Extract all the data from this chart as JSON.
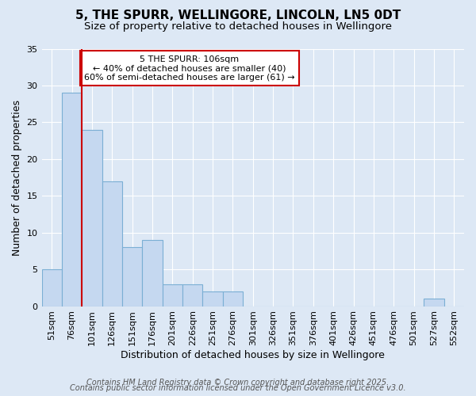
{
  "title1": "5, THE SPURR, WELLINGORE, LINCOLN, LN5 0DT",
  "title2": "Size of property relative to detached houses in Wellingore",
  "xlabel": "Distribution of detached houses by size in Wellingore",
  "ylabel": "Number of detached properties",
  "categories": [
    "51sqm",
    "76sqm",
    "101sqm",
    "126sqm",
    "151sqm",
    "176sqm",
    "201sqm",
    "226sqm",
    "251sqm",
    "276sqm",
    "301sqm",
    "326sqm",
    "351sqm",
    "376sqm",
    "401sqm",
    "426sqm",
    "451sqm",
    "476sqm",
    "501sqm",
    "527sqm",
    "552sqm"
  ],
  "values": [
    5,
    29,
    24,
    17,
    8,
    9,
    3,
    3,
    2,
    2,
    0,
    0,
    0,
    0,
    0,
    0,
    0,
    0,
    0,
    1,
    0
  ],
  "bar_color": "#c5d8f0",
  "bar_edge_color": "#7bafd4",
  "vline_x": 1.5,
  "vline_color": "#cc0000",
  "annotation_text": "5 THE SPURR: 106sqm\n← 40% of detached houses are smaller (40)\n60% of semi-detached houses are larger (61) →",
  "annotation_box_color": "#ffffff",
  "annotation_box_edge": "#cc0000",
  "ylim": [
    0,
    35
  ],
  "yticks": [
    0,
    5,
    10,
    15,
    20,
    25,
    30,
    35
  ],
  "footer1": "Contains HM Land Registry data © Crown copyright and database right 2025.",
  "footer2": "Contains public sector information licensed under the Open Government Licence v3.0.",
  "bg_color": "#dde8f5",
  "grid_color": "#ffffff",
  "title1_fontsize": 11,
  "title2_fontsize": 9.5,
  "ylabel_fontsize": 9,
  "xlabel_fontsize": 9,
  "tick_fontsize": 8,
  "footer_fontsize": 7
}
